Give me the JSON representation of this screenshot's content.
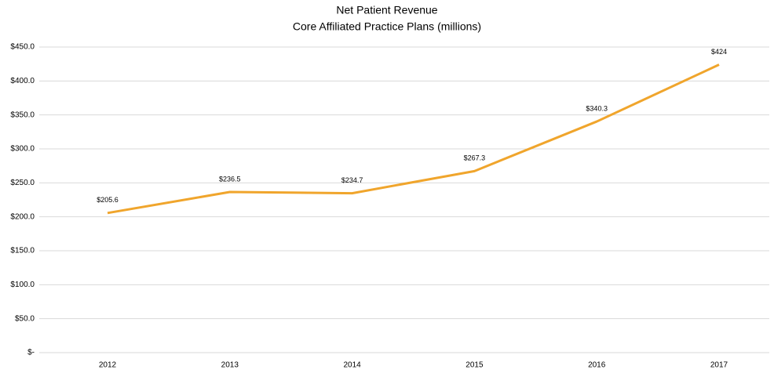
{
  "chart_data": {
    "type": "line",
    "title": "Net Patient Revenue",
    "subtitle": "Core Affiliated Practice Plans (millions)",
    "categories": [
      "2012",
      "2013",
      "2014",
      "2015",
      "2016",
      "2017"
    ],
    "series": [
      {
        "name": "Net Patient Revenue",
        "color": "#f0a52c",
        "values": [
          205.6,
          236.5,
          234.7,
          267.3,
          340.3,
          424
        ],
        "value_labels": [
          "$205.6",
          "$236.5",
          "$234.7",
          "$267.3",
          "$340.3",
          "$424"
        ]
      }
    ],
    "ylim": [
      0,
      450
    ],
    "yticks": [
      {
        "value": 0,
        "label": "$-"
      },
      {
        "value": 50,
        "label": "$50.0"
      },
      {
        "value": 100,
        "label": "$100.0"
      },
      {
        "value": 150,
        "label": "$150.0"
      },
      {
        "value": 200,
        "label": "$200.0"
      },
      {
        "value": 250,
        "label": "$250.0"
      },
      {
        "value": 300,
        "label": "$300.0"
      },
      {
        "value": 350,
        "label": "$350.0"
      },
      {
        "value": 400,
        "label": "$400.0"
      },
      {
        "value": 450,
        "label": "$450.0"
      }
    ],
    "grid": true
  }
}
